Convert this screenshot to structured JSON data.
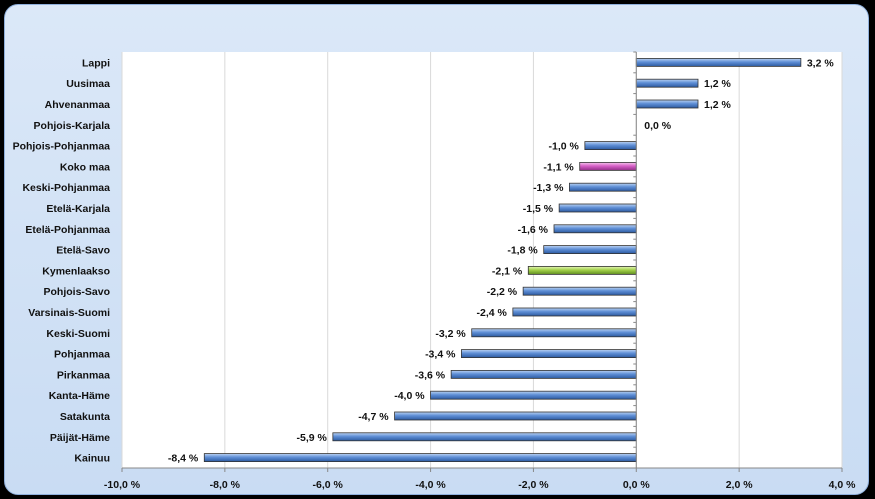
{
  "chart_data": {
    "type": "bar",
    "orientation": "horizontal",
    "categories": [
      "Lappi",
      "Uusimaa",
      "Ahvenanmaa",
      "Pohjois-Karjala",
      "Pohjois-Pohjanmaa",
      "Koko  maa",
      "Keski-Pohjanmaa",
      "Etelä-Karjala",
      "Etelä-Pohjanmaa",
      "Etelä-Savo",
      "Kymenlaakso",
      "Pohjois-Savo",
      "Varsinais-Suomi",
      "Keski-Suomi",
      "Pohjanmaa",
      "Pirkanmaa",
      "Kanta-Häme",
      "Satakunta",
      "Päijät-Häme",
      "Kainuu"
    ],
    "values": [
      3.2,
      1.2,
      1.2,
      0.0,
      -1.0,
      -1.1,
      -1.3,
      -1.5,
      -1.6,
      -1.8,
      -2.1,
      -2.2,
      -2.4,
      -3.2,
      -3.4,
      -3.6,
      -4.0,
      -4.7,
      -5.9,
      -8.4
    ],
    "value_labels": [
      "3,2 %",
      "1,2 %",
      "1,2 %",
      "0,0 %",
      "-1,0 %",
      "-1,1 %",
      "-1,3 %",
      "-1,5 %",
      "-1,6 %",
      "-1,8 %",
      "-2,1 %",
      "-2,2 %",
      "-2,4 %",
      "-3,2 %",
      "-3,4 %",
      "-3,6 %",
      "-4,0 %",
      "-4,7 %",
      "-5,9 %",
      "-8,4 %"
    ],
    "xlim": [
      -10,
      4
    ],
    "x_ticks": [
      -10,
      -8,
      -6,
      -4,
      -2,
      0,
      2,
      4
    ],
    "x_tick_labels": [
      "-10,0 %",
      "-8,0 %",
      "-6,0 %",
      "-4,0 %",
      "-2,0 %",
      "0,0 %",
      "2,0 %",
      "4,0 %"
    ],
    "grid": "vertical",
    "legend": "none",
    "title": "",
    "xlabel": "",
    "ylabel": "",
    "colors": {
      "default": "#4a7cc4",
      "highlight_national": "#d25fc2",
      "highlight_region": "#9acd4a"
    },
    "highlight": {
      "Koko  maa": "highlight_national",
      "Kymenlaakso": "highlight_region"
    }
  }
}
